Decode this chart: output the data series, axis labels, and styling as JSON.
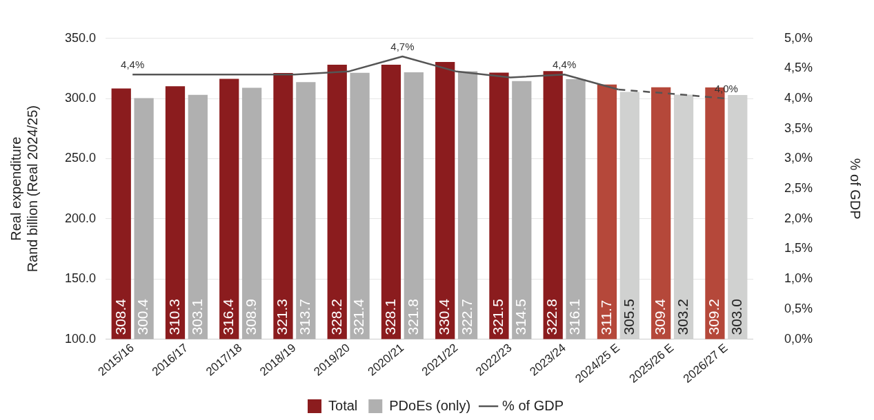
{
  "chart_data": {
    "type": "bar",
    "categories": [
      "2015/16",
      "2016/17",
      "2017/18",
      "2018/19",
      "2019/20",
      "2020/21",
      "2021/22",
      "2022/23",
      "2023/24",
      "2024/25 E",
      "2025/26 E",
      "2026/27 E"
    ],
    "ylabel": "Real expenditure\nRand billion (Real 2024/25)",
    "y2label": "% of GDP",
    "ylim": [
      100,
      350
    ],
    "yticks": [
      {
        "value": 100,
        "label": "100.0"
      },
      {
        "value": 150,
        "label": "150.0"
      },
      {
        "value": 200,
        "label": "200.0"
      },
      {
        "value": 250,
        "label": "250.0"
      },
      {
        "value": 300,
        "label": "300.0"
      },
      {
        "value": 350,
        "label": "350.0"
      }
    ],
    "y2lim": [
      0,
      5
    ],
    "y2ticks": [
      {
        "value": 0,
        "label": "0,0%"
      },
      {
        "value": 0.5,
        "label": "0,5%"
      },
      {
        "value": 1,
        "label": "1,0%"
      },
      {
        "value": 1.5,
        "label": "1,5%"
      },
      {
        "value": 2,
        "label": "2,0%"
      },
      {
        "value": 2.5,
        "label": "2,5%"
      },
      {
        "value": 3,
        "label": "3,0%"
      },
      {
        "value": 3.5,
        "label": "3,5%"
      },
      {
        "value": 4,
        "label": "4,0%"
      },
      {
        "value": 4.5,
        "label": "4,5%"
      },
      {
        "value": 5,
        "label": "5,0%"
      }
    ],
    "grid": "y",
    "legend": "bottom",
    "data_labels": true,
    "marker": "none",
    "series": [
      {
        "name": "Total",
        "color": "#8b1c1e",
        "colors": [
          "#8b1c1e",
          "#8b1c1e",
          "#8b1c1e",
          "#8b1c1e",
          "#8b1c1e",
          "#8b1c1e",
          "#8b1c1e",
          "#8b1c1e",
          "#8b1c1e",
          "#b5483a",
          "#b5483a",
          "#b5483a"
        ],
        "values": [
          308.4,
          310.3,
          316.4,
          321.3,
          328.2,
          328.1,
          330.4,
          321.5,
          322.8,
          311.7,
          309.4,
          309.2
        ],
        "value_labels": [
          "308.4",
          "310.3",
          "316.4",
          "321.3",
          "328.2",
          "328.1",
          "330.4",
          "321.5",
          "322.8",
          "311.7",
          "309.4",
          "309.2"
        ]
      },
      {
        "name": "PDoEs (only)",
        "color": "#b0b0b0",
        "colors": [
          "#b0b0b0",
          "#b0b0b0",
          "#b0b0b0",
          "#b0b0b0",
          "#b0b0b0",
          "#b0b0b0",
          "#b0b0b0",
          "#b0b0b0",
          "#b0b0b0",
          "#d0d1d0",
          "#d0d1d0",
          "#d0d1d0"
        ],
        "values": [
          300.4,
          303.1,
          308.9,
          313.7,
          321.4,
          321.8,
          322.7,
          314.5,
          316.1,
          305.5,
          303.2,
          303.0
        ],
        "value_labels": [
          "300.4",
          "303.1",
          "308.9",
          "313.7",
          "321.4",
          "321.8",
          "322.7",
          "314.5",
          "316.1",
          "305.5",
          "303.2",
          "303.0"
        ]
      },
      {
        "name": "% of GDP",
        "type": "line",
        "axis": "y2",
        "color": "#555555",
        "line_style": "solid",
        "values": [
          4.4,
          4.4,
          4.4,
          4.4,
          4.45,
          4.7,
          4.45,
          4.35,
          4.4,
          4.15,
          null,
          null
        ],
        "value_labels": [
          "4,4%",
          null,
          null,
          null,
          null,
          "4,7%",
          null,
          null,
          "4,4%",
          null,
          null,
          null
        ]
      },
      {
        "type": "line",
        "axis": "y2",
        "color": "#555555",
        "line_style": "dashed",
        "values": [
          null,
          null,
          null,
          null,
          null,
          null,
          null,
          null,
          null,
          4.15,
          4.08,
          4.0
        ],
        "value_labels": [
          null,
          null,
          null,
          null,
          null,
          null,
          null,
          null,
          null,
          null,
          null,
          "4,0%"
        ]
      }
    ]
  }
}
